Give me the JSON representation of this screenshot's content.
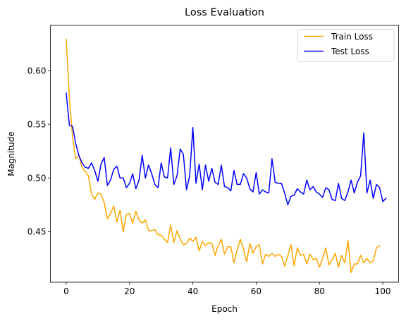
{
  "chart_data": {
    "type": "line",
    "title": "Loss Evaluation",
    "xlabel": "Epoch",
    "ylabel": "Magnitude",
    "xlim": [
      -5,
      105
    ],
    "ylim": [
      0.403,
      0.642
    ],
    "xticks": [
      0,
      20,
      40,
      60,
      80,
      100
    ],
    "yticks": [
      0.45,
      0.5,
      0.55,
      0.6
    ],
    "ytick_labels": [
      "0.45",
      "0.50",
      "0.55",
      "0.60"
    ],
    "grid": false,
    "legend_position": "top-right",
    "series": [
      {
        "name": "Train Loss",
        "color": "#ffa500",
        "values": [
          0.629,
          0.575,
          0.538,
          0.518,
          0.521,
          0.51,
          0.506,
          0.502,
          0.485,
          0.48,
          0.486,
          0.485,
          0.477,
          0.462,
          0.467,
          0.474,
          0.459,
          0.47,
          0.45,
          0.466,
          0.467,
          0.458,
          0.469,
          0.461,
          0.458,
          0.461,
          0.451,
          0.451,
          0.452,
          0.447,
          0.447,
          0.443,
          0.44,
          0.456,
          0.44,
          0.451,
          0.443,
          0.438,
          0.439,
          0.444,
          0.441,
          0.445,
          0.432,
          0.441,
          0.437,
          0.44,
          0.439,
          0.428,
          0.437,
          0.443,
          0.429,
          0.436,
          0.436,
          0.421,
          0.433,
          0.443,
          0.434,
          0.422,
          0.439,
          0.43,
          0.436,
          0.438,
          0.42,
          0.429,
          0.427,
          0.43,
          0.427,
          0.429,
          0.427,
          0.418,
          0.428,
          0.438,
          0.418,
          0.435,
          0.428,
          0.429,
          0.42,
          0.429,
          0.424,
          0.425,
          0.417,
          0.425,
          0.435,
          0.419,
          0.424,
          0.43,
          0.417,
          0.428,
          0.421,
          0.442,
          0.412,
          0.42,
          0.42,
          0.428,
          0.421,
          0.425,
          0.421,
          0.423,
          0.435,
          0.437
        ]
      },
      {
        "name": "Test Loss",
        "color": "#0000ff",
        "values": [
          0.579,
          0.549,
          0.548,
          0.532,
          0.521,
          0.514,
          0.51,
          0.509,
          0.514,
          0.507,
          0.497,
          0.513,
          0.519,
          0.493,
          0.498,
          0.508,
          0.511,
          0.5,
          0.5,
          0.491,
          0.495,
          0.504,
          0.49,
          0.498,
          0.521,
          0.5,
          0.512,
          0.504,
          0.494,
          0.491,
          0.514,
          0.501,
          0.5,
          0.528,
          0.494,
          0.502,
          0.527,
          0.522,
          0.489,
          0.502,
          0.547,
          0.495,
          0.513,
          0.489,
          0.512,
          0.497,
          0.509,
          0.496,
          0.494,
          0.512,
          0.492,
          0.491,
          0.488,
          0.507,
          0.494,
          0.494,
          0.504,
          0.5,
          0.49,
          0.487,
          0.505,
          0.485,
          0.489,
          0.487,
          0.486,
          0.518,
          0.496,
          0.495,
          0.495,
          0.486,
          0.475,
          0.483,
          0.484,
          0.49,
          0.487,
          0.485,
          0.498,
          0.489,
          0.492,
          0.487,
          0.485,
          0.482,
          0.491,
          0.489,
          0.48,
          0.479,
          0.495,
          0.481,
          0.479,
          0.487,
          0.498,
          0.486,
          0.496,
          0.502,
          0.542,
          0.486,
          0.498,
          0.481,
          0.494,
          0.491,
          0.478,
          0.481
        ]
      }
    ]
  }
}
